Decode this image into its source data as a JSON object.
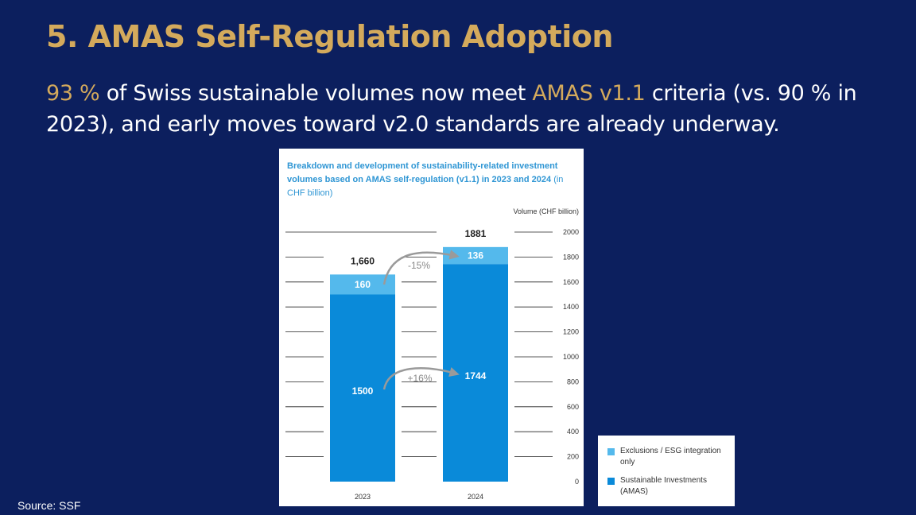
{
  "slide": {
    "title": "5. AMAS Self-Regulation Adoption",
    "subtitle": {
      "p1": "93 %",
      "p2": " of Swiss sustainable volumes now meet ",
      "p3": "AMAS v1.1",
      "p4": " criteria (vs. 90 % in 2023), and early moves toward v2.0 standards are already underway."
    },
    "source": "Source: SSF"
  },
  "colors": {
    "background": "#0c1f5e",
    "accent": "#d4aa5c",
    "sustainable": "#0a8ad9",
    "exclusions": "#54b9ec"
  },
  "chart_data": {
    "type": "bar",
    "stacked": true,
    "title_bold": "Breakdown and development of sustainability-related investment volumes based on AMAS self-regulation (v1.1) in 2023 and 2024",
    "title_light": " (in CHF billion)",
    "ylabel": "Volume (CHF billion)",
    "ylim": [
      0,
      2000
    ],
    "yticks": [
      0,
      200,
      400,
      600,
      800,
      1000,
      1200,
      1400,
      1600,
      1800,
      2000
    ],
    "categories": [
      "2023",
      "2024"
    ],
    "series": [
      {
        "name": "Sustainable Investments (AMAS)",
        "values": [
          1500,
          1744
        ]
      },
      {
        "name": "Exclusions / ESG integration only",
        "values": [
          160,
          136
        ]
      }
    ],
    "totals": [
      "1,660",
      "1881"
    ],
    "segment_labels": {
      "sustainable": [
        "1500",
        "1744"
      ],
      "exclusions": [
        "160",
        "136"
      ]
    },
    "annotations": {
      "exclusions_change": "-15%",
      "sustainable_change": "+16%"
    },
    "legend": [
      {
        "label": "Exclusions / ESG integration only",
        "series": 1
      },
      {
        "label": "Sustainable Investments (AMAS)",
        "series": 0
      }
    ]
  }
}
